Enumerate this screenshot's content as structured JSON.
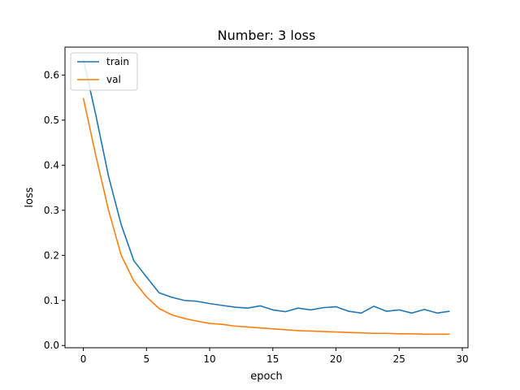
{
  "chart_data": {
    "type": "line",
    "title": "Number: 3 loss",
    "xlabel": "epoch",
    "ylabel": "loss",
    "xlim": [
      -1.45,
      30.45
    ],
    "ylim": [
      -0.005,
      0.662
    ],
    "xticks": [
      0,
      5,
      10,
      15,
      20,
      25,
      30
    ],
    "xtick_labels": [
      "0",
      "5",
      "10",
      "15",
      "20",
      "25",
      "30"
    ],
    "yticks": [
      0.0,
      0.1,
      0.2,
      0.3,
      0.4,
      0.5,
      0.6
    ],
    "ytick_labels": [
      "0.0",
      "0.1",
      "0.2",
      "0.3",
      "0.4",
      "0.5",
      "0.6"
    ],
    "grid": false,
    "legend_position": "top-left",
    "x": [
      0,
      1,
      2,
      3,
      4,
      5,
      6,
      7,
      8,
      9,
      10,
      11,
      12,
      13,
      14,
      15,
      16,
      17,
      18,
      19,
      20,
      21,
      22,
      23,
      24,
      25,
      26,
      27,
      28,
      29
    ],
    "series": [
      {
        "name": "train",
        "color": "#1f77b4",
        "values": [
          0.635,
          0.51,
          0.375,
          0.268,
          0.188,
          0.152,
          0.117,
          0.107,
          0.1,
          0.098,
          0.093,
          0.089,
          0.085,
          0.083,
          0.088,
          0.079,
          0.075,
          0.083,
          0.079,
          0.084,
          0.086,
          0.076,
          0.072,
          0.087,
          0.076,
          0.079,
          0.072,
          0.08,
          0.072,
          0.076
        ]
      },
      {
        "name": "val",
        "color": "#ff7f0e",
        "values": [
          0.549,
          0.42,
          0.3,
          0.2,
          0.143,
          0.108,
          0.082,
          0.068,
          0.06,
          0.054,
          0.049,
          0.047,
          0.043,
          0.041,
          0.039,
          0.037,
          0.035,
          0.033,
          0.032,
          0.031,
          0.03,
          0.029,
          0.028,
          0.027,
          0.027,
          0.026,
          0.026,
          0.025,
          0.025,
          0.025
        ]
      }
    ]
  }
}
